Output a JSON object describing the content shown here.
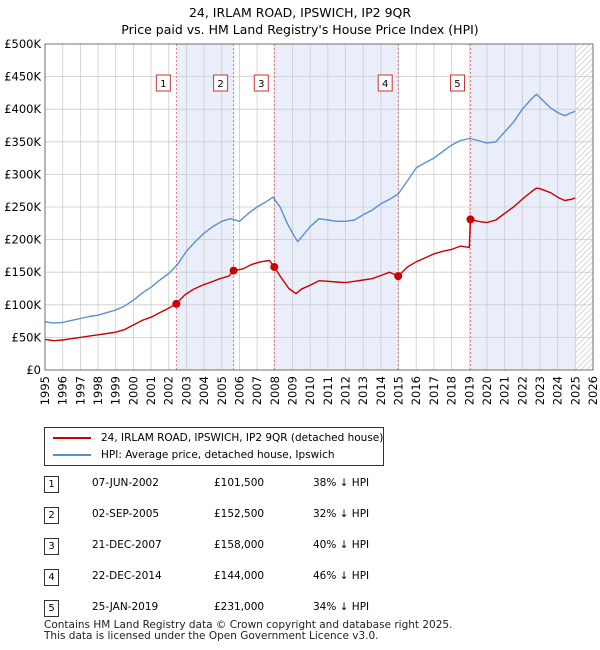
{
  "title": {
    "line1": "24, IRLAM ROAD, IPSWICH, IP2 9QR",
    "line2": "Price paid vs. HM Land Registry's House Price Index (HPI)"
  },
  "colors": {
    "price_paid": "#cc0000",
    "hpi": "#5b8fd0",
    "shade": "#e9eefa",
    "grid": "#cccccc",
    "vline": "#e06060"
  },
  "chart_data": {
    "type": "line",
    "title": "Price paid vs. HM Land Registry's House Price Index (HPI)",
    "xlabel": "",
    "ylabel": "",
    "xlim": [
      1995,
      2026
    ],
    "ylim": [
      0,
      500000
    ],
    "x_ticks": [
      "1995",
      "1996",
      "1997",
      "1998",
      "1999",
      "2000",
      "2001",
      "2002",
      "2003",
      "2004",
      "2005",
      "2006",
      "2007",
      "2008",
      "2009",
      "2010",
      "2011",
      "2012",
      "2013",
      "2014",
      "2015",
      "2016",
      "2017",
      "2018",
      "2019",
      "2020",
      "2021",
      "2022",
      "2023",
      "2024",
      "2025",
      "2026"
    ],
    "y_ticks": [
      {
        "value": 0,
        "label": "£0"
      },
      {
        "value": 50000,
        "label": "£50K"
      },
      {
        "value": 100000,
        "label": "£100K"
      },
      {
        "value": 150000,
        "label": "£150K"
      },
      {
        "value": 200000,
        "label": "£200K"
      },
      {
        "value": 250000,
        "label": "£250K"
      },
      {
        "value": 300000,
        "label": "£300K"
      },
      {
        "value": 350000,
        "label": "£350K"
      },
      {
        "value": 400000,
        "label": "£400K"
      },
      {
        "value": 450000,
        "label": "£450K"
      },
      {
        "value": 500000,
        "label": "£500K"
      }
    ],
    "grid": true,
    "shaded_spans": [
      [
        2002.43,
        2005.67
      ],
      [
        2007.97,
        2014.98
      ],
      [
        2019.07,
        2025.0
      ]
    ],
    "hatched_span": [
      2025.0,
      2026
    ],
    "sales": [
      {
        "label": "1",
        "x": 2002.43,
        "y": 101500
      },
      {
        "label": "2",
        "x": 2005.67,
        "y": 152500
      },
      {
        "label": "3",
        "x": 2007.97,
        "y": 158000
      },
      {
        "label": "4",
        "x": 2014.98,
        "y": 144000
      },
      {
        "label": "5",
        "x": 2019.07,
        "y": 231000
      }
    ],
    "series": [
      {
        "name": "HPI: Average price, detached house, Ipswich",
        "color": "#5b8fd0",
        "x": [
          1995,
          1995.5,
          1996,
          1996.5,
          1997,
          1997.5,
          1998,
          1998.5,
          1999,
          1999.5,
          2000,
          2000.5,
          2001,
          2001.5,
          2002,
          2002.5,
          2003,
          2003.5,
          2004,
          2004.5,
          2005,
          2005.5,
          2006,
          2006.5,
          2007,
          2007.5,
          2007.9,
          2008.3,
          2008.7,
          2009.1,
          2009.3,
          2009.7,
          2010,
          2010.5,
          2011,
          2011.5,
          2012,
          2012.5,
          2013,
          2013.5,
          2014,
          2014.5,
          2014.98,
          2015.5,
          2016,
          2016.5,
          2017,
          2017.5,
          2018,
          2018.5,
          2019,
          2019.5,
          2020,
          2020.5,
          2021,
          2021.5,
          2022,
          2022.5,
          2022.8,
          2023,
          2023.3,
          2023.6,
          2024,
          2024.4,
          2024.8,
          2025
        ],
        "y": [
          74000,
          72000,
          73000,
          76000,
          79000,
          82000,
          84000,
          88000,
          92000,
          98000,
          107000,
          118000,
          127000,
          138000,
          148000,
          162000,
          182000,
          197000,
          210000,
          220000,
          228000,
          232000,
          228000,
          240000,
          250000,
          258000,
          265000,
          250000,
          225000,
          205000,
          197000,
          210000,
          220000,
          232000,
          230000,
          228000,
          228000,
          230000,
          238000,
          245000,
          255000,
          262000,
          270000,
          290000,
          310000,
          318000,
          325000,
          335000,
          345000,
          352000,
          355000,
          352000,
          348000,
          350000,
          365000,
          380000,
          400000,
          415000,
          423000,
          418000,
          410000,
          402000,
          395000,
          390000,
          395000,
          397000
        ]
      },
      {
        "name": "24, IRLAM ROAD, IPSWICH, IP2 9QR (detached house)",
        "color": "#cc0000",
        "x": [
          1995,
          1995.5,
          1996,
          1996.5,
          1997,
          1997.5,
          1998,
          1998.5,
          1999,
          1999.5,
          2000,
          2000.5,
          2001,
          2001.5,
          2002,
          2002.43,
          2002.9,
          2003.4,
          2003.9,
          2004.4,
          2004.9,
          2005.4,
          2005.67,
          2006.2,
          2006.7,
          2007.2,
          2007.7,
          2007.97,
          2008.4,
          2008.8,
          2009.2,
          2009.5,
          2010,
          2010.5,
          2011,
          2011.5,
          2012,
          2012.5,
          2013,
          2013.5,
          2014,
          2014.5,
          2014.98,
          2015.5,
          2016,
          2016.5,
          2017,
          2017.5,
          2018,
          2018.5,
          2019.0,
          2019.07,
          2019.5,
          2020,
          2020.5,
          2021,
          2021.5,
          2022,
          2022.5,
          2022.8,
          2023,
          2023.3,
          2023.6,
          2024,
          2024.4,
          2024.8,
          2025
        ],
        "y": [
          47000,
          45000,
          46000,
          48000,
          50000,
          52000,
          54000,
          56000,
          58000,
          62000,
          69000,
          76000,
          81000,
          88000,
          95000,
          101500,
          115000,
          124000,
          130000,
          135000,
          140000,
          144000,
          152500,
          155000,
          162000,
          166000,
          168000,
          158000,
          140000,
          125000,
          117000,
          124000,
          130000,
          137000,
          136000,
          135000,
          134000,
          136000,
          138000,
          140000,
          145000,
          150000,
          144000,
          158000,
          166000,
          172000,
          178000,
          182000,
          185000,
          190000,
          188000,
          231000,
          228000,
          226000,
          230000,
          240000,
          250000,
          262000,
          273000,
          279000,
          278000,
          275000,
          272000,
          265000,
          260000,
          262000,
          264000
        ]
      }
    ]
  },
  "legend": {
    "items": [
      {
        "label": "24, IRLAM ROAD, IPSWICH, IP2 9QR (detached house)",
        "color": "#cc0000"
      },
      {
        "label": "HPI: Average price, detached house, Ipswich",
        "color": "#5b8fd0"
      }
    ]
  },
  "sales_table": {
    "rows": [
      {
        "num": "1",
        "date": "07-JUN-2002",
        "price": "£101,500",
        "hpi": "38% ↓ HPI"
      },
      {
        "num": "2",
        "date": "02-SEP-2005",
        "price": "£152,500",
        "hpi": "32% ↓ HPI"
      },
      {
        "num": "3",
        "date": "21-DEC-2007",
        "price": "£158,000",
        "hpi": "40% ↓ HPI"
      },
      {
        "num": "4",
        "date": "22-DEC-2014",
        "price": "£144,000",
        "hpi": "46% ↓ HPI"
      },
      {
        "num": "5",
        "date": "25-JAN-2019",
        "price": "£231,000",
        "hpi": "34% ↓ HPI"
      }
    ]
  },
  "footer": {
    "line1": "Contains HM Land Registry data © Crown copyright and database right 2025.",
    "line2": "This data is licensed under the Open Government Licence v3.0."
  }
}
